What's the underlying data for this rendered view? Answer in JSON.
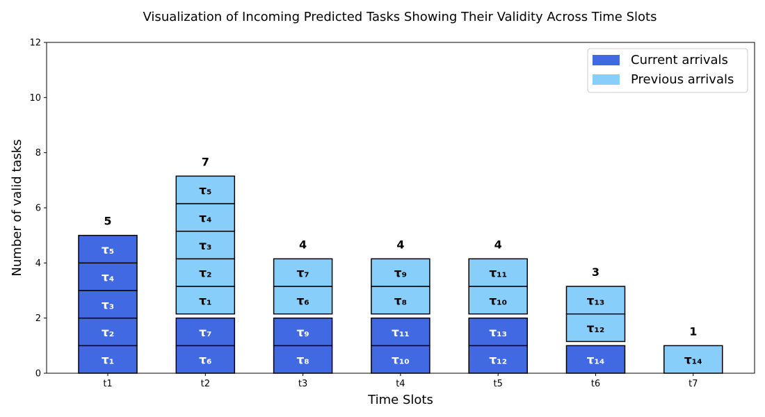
{
  "chart_data": {
    "type": "bar",
    "title": "Visualization of Incoming Predicted Tasks Showing Their Validity Across Time Slots",
    "xlabel": "Time Slots",
    "ylabel": "Number of valid tasks",
    "ylim": [
      0,
      12
    ],
    "yticks": [
      "0",
      "2",
      "4",
      "6",
      "8",
      "10",
      "12"
    ],
    "categories": [
      "t1",
      "t2",
      "t3",
      "t4",
      "t5",
      "t6",
      "t7"
    ],
    "totals": [
      "5",
      "7",
      "4",
      "4",
      "4",
      "3",
      "1"
    ],
    "legend": {
      "position": "top-right",
      "entries": [
        {
          "key": "current",
          "label": "Current arrivals",
          "color": "#4169e1"
        },
        {
          "key": "previous",
          "label": "Previous arrivals",
          "color": "#87cefa"
        }
      ]
    },
    "stacks": [
      {
        "slot": "t1",
        "current": [
          "τ₁",
          "τ₂",
          "τ₃",
          "τ₄",
          "τ₅"
        ],
        "previous": []
      },
      {
        "slot": "t2",
        "current": [
          "τ₆",
          "τ₇"
        ],
        "previous": [
          "τ₁",
          "τ₂",
          "τ₃",
          "τ₄",
          "τ₅"
        ]
      },
      {
        "slot": "t3",
        "current": [
          "τ₈",
          "τ₉"
        ],
        "previous": [
          "τ₆",
          "τ₇"
        ]
      },
      {
        "slot": "t4",
        "current": [
          "τ₁₀",
          "τ₁₁"
        ],
        "previous": [
          "τ₈",
          "τ₉"
        ]
      },
      {
        "slot": "t5",
        "current": [
          "τ₁₂",
          "τ₁₃"
        ],
        "previous": [
          "τ₁₀",
          "τ₁₁"
        ]
      },
      {
        "slot": "t6",
        "current": [
          "τ₁₄"
        ],
        "previous": [
          "τ₁₂",
          "τ₁₃"
        ]
      },
      {
        "slot": "t7",
        "current": [],
        "previous": [
          "τ₁₄"
        ]
      }
    ],
    "grid": false
  }
}
